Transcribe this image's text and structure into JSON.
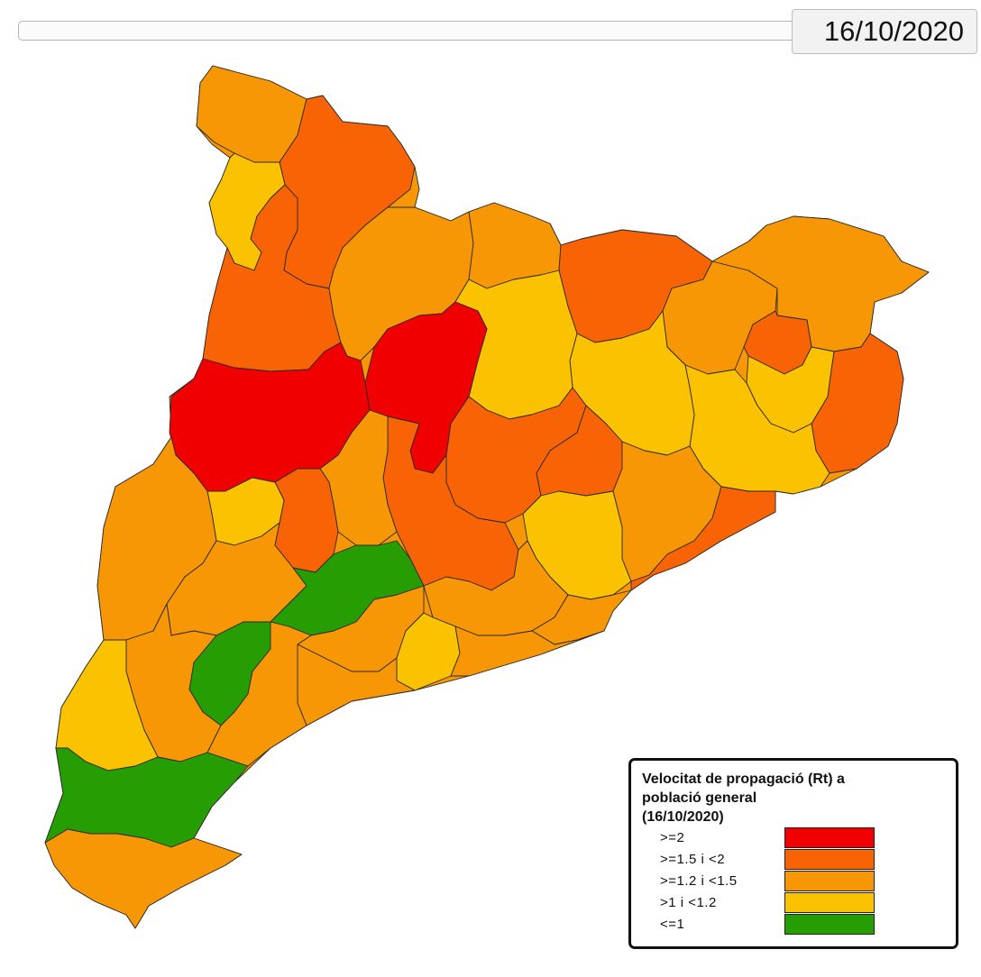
{
  "header": {
    "date_display": "16/10/2020"
  },
  "legend": {
    "title_lines": [
      "Velocitat de propagació (Rt) a",
      "població general",
      "(16/10/2020)"
    ],
    "items": [
      {
        "label": ">=2",
        "color": "#f00000"
      },
      {
        "label": ">=1.5 i <2",
        "color": "#f86306"
      },
      {
        "label": ">=1.2 i <1.5",
        "color": "#f89706"
      },
      {
        "label": ">1 i <1.2",
        "color": "#fbc201"
      },
      {
        "label": "<=1",
        "color": "#279d04"
      }
    ]
  },
  "map": {
    "regions": [
      {
        "class": "1.2-1.5"
      },
      {
        "class": "1.5-2"
      },
      {
        "class": "1-1.2"
      },
      {
        "class": "<=1"
      },
      {
        "class": "1.5-2"
      },
      {
        "class": "1.2-1.5"
      },
      {
        "class": "1.5-2"
      },
      {
        "class": "1.2-1.5"
      },
      {
        "class": "1-1.2"
      },
      {
        "class": "<=1"
      },
      {
        "class": "1.5-2"
      },
      {
        "class": "1.2-1.5"
      },
      {
        "class": ">=2"
      },
      {
        "class": ">=2"
      },
      {
        "class": "1-1.2"
      },
      {
        "class": "1.5-2"
      },
      {
        "class": "1.2-1.5"
      },
      {
        "class": "1.5-2"
      },
      {
        "class": "1.5-2"
      },
      {
        "class": "1.2-1.5"
      },
      {
        "class": "1-1.2"
      },
      {
        "class": "1-1.2"
      },
      {
        "class": "1.5-2"
      },
      {
        "class": "1.2-1.5"
      },
      {
        "class": "1.2-1.5"
      },
      {
        "class": "1.5-2"
      },
      {
        "class": "1.5-2"
      },
      {
        "class": "<=1"
      },
      {
        "class": "1.2-1.5"
      },
      {
        "class": "1.2-1.5"
      },
      {
        "class": "1-1.2"
      },
      {
        "class": "1.2-1.5"
      },
      {
        "class": "<=1"
      },
      {
        "class": "1.2-1.5"
      },
      {
        "class": "1-1.2"
      },
      {
        "class": "1-1.2"
      },
      {
        "class": "1.2-1.5"
      },
      {
        "class": "1.2-1.5"
      },
      {
        "class": "1.2-1.5"
      },
      {
        "class": "1.2-1.5"
      },
      {
        "class": "1-1.2"
      },
      {
        "class": "1.2-1.5"
      }
    ]
  }
}
